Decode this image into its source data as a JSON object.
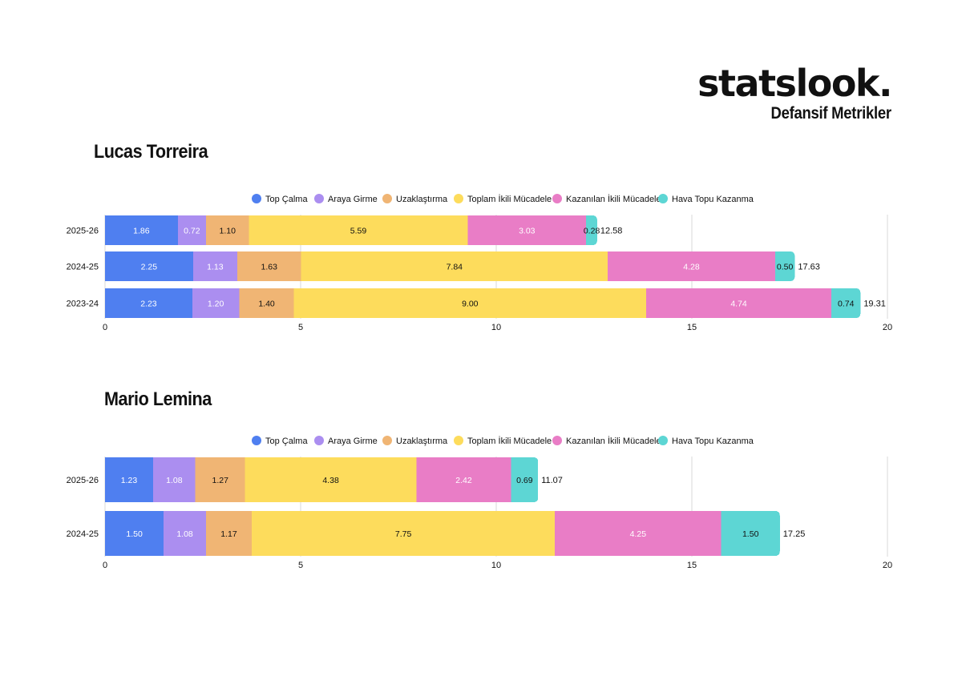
{
  "brand": {
    "logo": "statslook.",
    "subtitle": "Defansif Metrikler"
  },
  "colors": {
    "Top Çalma": "#4f7ff0",
    "Araya Girme": "#ab8ef0",
    "Uzaklaştırma": "#f0b574",
    "Toplam İkili Mücadele": "#fddc5c",
    "Kazanılan İkili Mücadele": "#e97dc6",
    "Hava Topu Kazanma": "#5dd6d4"
  },
  "chart_data": [
    {
      "type": "bar",
      "orientation": "horizontal",
      "stacked": true,
      "title": "Lucas Torreira",
      "categories": [
        "2025-26",
        "2024-25",
        "2023-24"
      ],
      "series": [
        {
          "name": "Top Çalma",
          "values": [
            1.86,
            2.25,
            2.23
          ],
          "labels": [
            "1.86",
            "2.25",
            "2.23"
          ]
        },
        {
          "name": "Araya Girme",
          "values": [
            0.72,
            1.13,
            1.2
          ],
          "labels": [
            "0.72",
            "1.13",
            "1.20"
          ]
        },
        {
          "name": "Uzaklaştırma",
          "values": [
            1.1,
            1.63,
            1.4
          ],
          "labels": [
            "1.10",
            "1.63",
            "1.40"
          ]
        },
        {
          "name": "Toplam İkili Mücadele",
          "values": [
            5.59,
            7.84,
            9.0
          ],
          "labels": [
            "5.59",
            "7.84",
            "9.00"
          ]
        },
        {
          "name": "Kazanılan İkili Mücadele",
          "values": [
            3.03,
            4.28,
            4.74
          ],
          "labels": [
            "3.03",
            "4.28",
            "4.74"
          ]
        },
        {
          "name": "Hava Topu Kazanma",
          "values": [
            0.28,
            0.5,
            0.74
          ],
          "labels": [
            "0.28",
            "0.50",
            "0.74"
          ]
        }
      ],
      "totals": [
        "12.58",
        "17.63",
        "19.31"
      ],
      "xlim": [
        0,
        20
      ],
      "xticks": [
        0,
        5,
        10,
        15,
        20
      ],
      "xtick_labels": [
        "0",
        "5",
        "10",
        "15",
        "20"
      ],
      "grid": true,
      "legend_position": "top"
    },
    {
      "type": "bar",
      "orientation": "horizontal",
      "stacked": true,
      "title": "Mario Lemina",
      "categories": [
        "2025-26",
        "2024-25"
      ],
      "series": [
        {
          "name": "Top Çalma",
          "values": [
            1.23,
            1.5
          ],
          "labels": [
            "1.23",
            "1.50"
          ]
        },
        {
          "name": "Araya Girme",
          "values": [
            1.08,
            1.08
          ],
          "labels": [
            "1.08",
            "1.08"
          ]
        },
        {
          "name": "Uzaklaştırma",
          "values": [
            1.27,
            1.17
          ],
          "labels": [
            "1.27",
            "1.17"
          ]
        },
        {
          "name": "Toplam İkili Mücadele",
          "values": [
            4.38,
            7.75
          ],
          "labels": [
            "4.38",
            "7.75"
          ]
        },
        {
          "name": "Kazanılan İkili Mücadele",
          "values": [
            2.42,
            4.25
          ],
          "labels": [
            "2.42",
            "4.25"
          ]
        },
        {
          "name": "Hava Topu Kazanma",
          "values": [
            0.69,
            1.5
          ],
          "labels": [
            "0.69",
            "1.50"
          ]
        }
      ],
      "totals": [
        "11.07",
        "17.25"
      ],
      "xlim": [
        0,
        20
      ],
      "xticks": [
        0,
        5,
        10,
        15,
        20
      ],
      "xtick_labels": [
        "0",
        "5",
        "10",
        "15",
        "20"
      ],
      "grid": true,
      "legend_position": "top"
    }
  ]
}
